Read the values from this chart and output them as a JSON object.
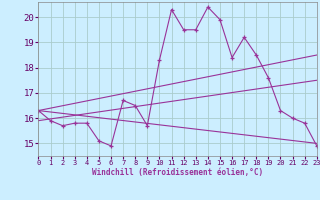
{
  "background_color": "#cceeff",
  "grid_color": "#aacccc",
  "line_color": "#993399",
  "xlabel": "Windchill (Refroidissement éolien,°C)",
  "xlim": [
    0,
    23
  ],
  "ylim": [
    14.5,
    20.6
  ],
  "yticks": [
    15,
    16,
    17,
    18,
    19,
    20
  ],
  "xticks": [
    0,
    1,
    2,
    3,
    4,
    5,
    6,
    7,
    8,
    9,
    10,
    11,
    12,
    13,
    14,
    15,
    16,
    17,
    18,
    19,
    20,
    21,
    22,
    23
  ],
  "series0_x": [
    0,
    1,
    2,
    3,
    4,
    5,
    6,
    7,
    8,
    9,
    10,
    11,
    12,
    13,
    14,
    15,
    16,
    17,
    18,
    19,
    20,
    21,
    22,
    23
  ],
  "series0_y": [
    16.3,
    15.9,
    15.7,
    15.8,
    15.8,
    15.1,
    14.9,
    16.7,
    16.5,
    15.7,
    18.3,
    20.3,
    19.5,
    19.5,
    20.4,
    19.9,
    18.4,
    19.2,
    18.5,
    17.6,
    16.3,
    16.0,
    15.8,
    14.9
  ],
  "line1_x": [
    0,
    23
  ],
  "line1_y": [
    15.9,
    17.5
  ],
  "line2_x": [
    0,
    23
  ],
  "line2_y": [
    16.3,
    18.5
  ],
  "line3_x": [
    0,
    23
  ],
  "line3_y": [
    16.3,
    15.0
  ],
  "xlabel_fontsize": 5.5,
  "ytick_fontsize": 6.5,
  "xtick_fontsize": 5.0
}
